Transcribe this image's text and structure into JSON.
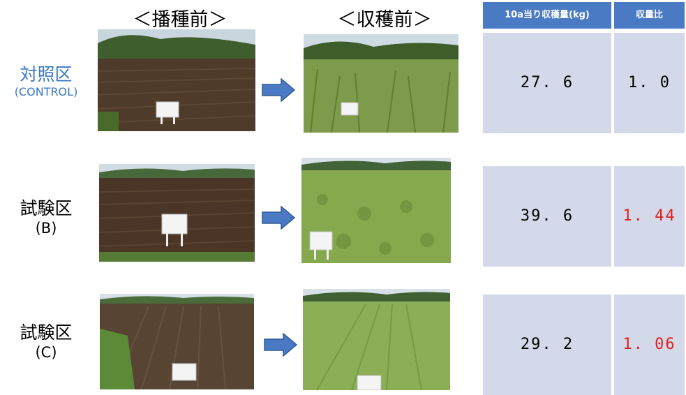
{
  "headers": {
    "before_sowing": "＜播種前＞",
    "before_harvest": "＜収穫前＞"
  },
  "table_headers": {
    "yield": "10a当り収穫量(kg)",
    "ratio": "収量比"
  },
  "rows": [
    {
      "label": "対照区",
      "sub": "(CONTROL)",
      "yield": "27. 6",
      "ratio": "1. 0",
      "ratio_highlight": false
    },
    {
      "label": "試験区",
      "sub": "(B)",
      "yield": "39. 6",
      "ratio": "1. 44",
      "ratio_highlight": true
    },
    {
      "label": "試験区",
      "sub": "(C)",
      "yield": "29. 2",
      "ratio": "1. 06",
      "ratio_highlight": true
    }
  ],
  "colors": {
    "control_label": "#3a78c2",
    "table_header_bg": "#4a7ac4",
    "table_cell_bg": "#d3d9e9",
    "highlight": "#e02020",
    "arrow_fill": "#4a7ac4",
    "arrow_stroke": "#2f5a96"
  },
  "icons": {
    "arrow": "right-arrow-icon",
    "photo": "field-photo"
  }
}
